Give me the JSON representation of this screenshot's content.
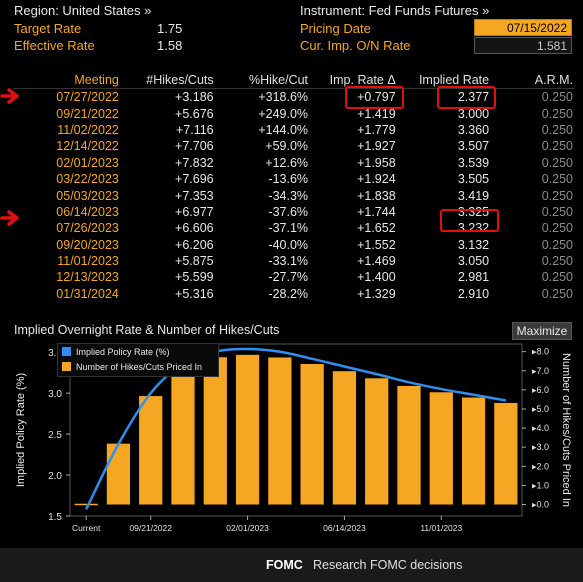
{
  "header": {
    "region_label": "Region: United States »",
    "target_rate_label": "Target Rate",
    "target_rate_value": "1.75",
    "effective_rate_label": "Effective Rate",
    "effective_rate_value": "1.58",
    "instrument_label": "Instrument: Fed Funds Futures »",
    "pricing_date_label": "Pricing Date",
    "pricing_date_value": "07/15/2022",
    "cur_imp_label": "Cur. Imp. O/N Rate",
    "cur_imp_value": "1.581"
  },
  "table": {
    "columns": [
      "Meeting",
      "#Hikes/Cuts",
      "%Hike/Cut",
      "Imp. Rate Δ",
      "Implied Rate",
      "A.R.M."
    ],
    "rows": [
      {
        "meeting": "07/27/2022",
        "hikes": "+3.186",
        "pct": "+318.6%",
        "imp_delta": "+0.797",
        "implied": "2.377",
        "arm": "0.250"
      },
      {
        "meeting": "09/21/2022",
        "hikes": "+5.676",
        "pct": "+249.0%",
        "imp_delta": "+1.419",
        "implied": "3.000",
        "arm": "0.250"
      },
      {
        "meeting": "11/02/2022",
        "hikes": "+7.116",
        "pct": "+144.0%",
        "imp_delta": "+1.779",
        "implied": "3.360",
        "arm": "0.250"
      },
      {
        "meeting": "12/14/2022",
        "hikes": "+7.706",
        "pct": "+59.0%",
        "imp_delta": "+1.927",
        "implied": "3.507",
        "arm": "0.250"
      },
      {
        "meeting": "02/01/2023",
        "hikes": "+7.832",
        "pct": "+12.6%",
        "imp_delta": "+1.958",
        "implied": "3.539",
        "arm": "0.250"
      },
      {
        "meeting": "03/22/2023",
        "hikes": "+7.696",
        "pct": "-13.6%",
        "imp_delta": "+1.924",
        "implied": "3.505",
        "arm": "0.250"
      },
      {
        "meeting": "05/03/2023",
        "hikes": "+7.353",
        "pct": "-34.3%",
        "imp_delta": "+1.838",
        "implied": "3.419",
        "arm": "0.250"
      },
      {
        "meeting": "06/14/2023",
        "hikes": "+6.977",
        "pct": "-37.6%",
        "imp_delta": "+1.744",
        "implied": "3.325",
        "arm": "0.250"
      },
      {
        "meeting": "07/26/2023",
        "hikes": "+6.606",
        "pct": "-37.1%",
        "imp_delta": "+1.652",
        "implied": "3.232",
        "arm": "0.250"
      },
      {
        "meeting": "09/20/2023",
        "hikes": "+6.206",
        "pct": "-40.0%",
        "imp_delta": "+1.552",
        "implied": "3.132",
        "arm": "0.250"
      },
      {
        "meeting": "11/01/2023",
        "hikes": "+5.875",
        "pct": "-33.1%",
        "imp_delta": "+1.469",
        "implied": "3.050",
        "arm": "0.250"
      },
      {
        "meeting": "12/13/2023",
        "hikes": "+5.599",
        "pct": "-27.7%",
        "imp_delta": "+1.400",
        "implied": "2.981",
        "arm": "0.250"
      },
      {
        "meeting": "01/31/2024",
        "hikes": "+5.316",
        "pct": "-28.2%",
        "imp_delta": "+1.329",
        "implied": "2.910",
        "arm": "0.250"
      }
    ]
  },
  "chart_section": {
    "title": "Implied Overnight Rate & Number of Hikes/Cuts",
    "maximize_label": "Maximize"
  },
  "chart_data": {
    "type": "bar",
    "categories": [
      "Current",
      "07/27/2022",
      "09/21/2022",
      "11/02/2022",
      "12/14/2022",
      "02/01/2023",
      "03/22/2023",
      "05/03/2023",
      "06/14/2023",
      "07/26/2023",
      "09/20/2023",
      "11/01/2023",
      "12/13/2023",
      "01/31/2024"
    ],
    "x_tick_labels": [
      "Current",
      "09/21/2022",
      "02/01/2023",
      "06/14/2023",
      "11/01/2023"
    ],
    "series": [
      {
        "name": "Implied Policy Rate (%)",
        "type": "line",
        "axis": "left",
        "values": [
          1.581,
          2.377,
          3.0,
          3.36,
          3.507,
          3.539,
          3.505,
          3.419,
          3.325,
          3.232,
          3.132,
          3.05,
          2.981,
          2.91
        ]
      },
      {
        "name": "Number of Hikes/Cuts Priced In",
        "type": "bar",
        "axis": "right",
        "values": [
          0,
          3.186,
          5.676,
          7.116,
          7.706,
          7.832,
          7.696,
          7.353,
          6.977,
          6.606,
          6.206,
          5.875,
          5.599,
          5.316
        ]
      }
    ],
    "ylabel": "Implied Policy Rate (%)",
    "ylabel_right": "Number of Hikes/Cuts Priced In",
    "ylim": [
      1.5,
      3.6
    ],
    "ylim_right": [
      -0.6,
      8.4
    ],
    "left_ticks": [
      "1.5",
      "2.0",
      "2.5",
      "3.0",
      "3.5"
    ],
    "right_ticks": [
      "0.0",
      "1.0",
      "2.0",
      "3.0",
      "4.0",
      "5.0",
      "6.0",
      "7.0",
      "8.0"
    ],
    "legend": "top-left",
    "colors": {
      "line": "#2f8ff0",
      "bar": "#f5a623"
    }
  },
  "footer": {
    "code": "FOMC",
    "description": "Research FOMC decisions"
  }
}
